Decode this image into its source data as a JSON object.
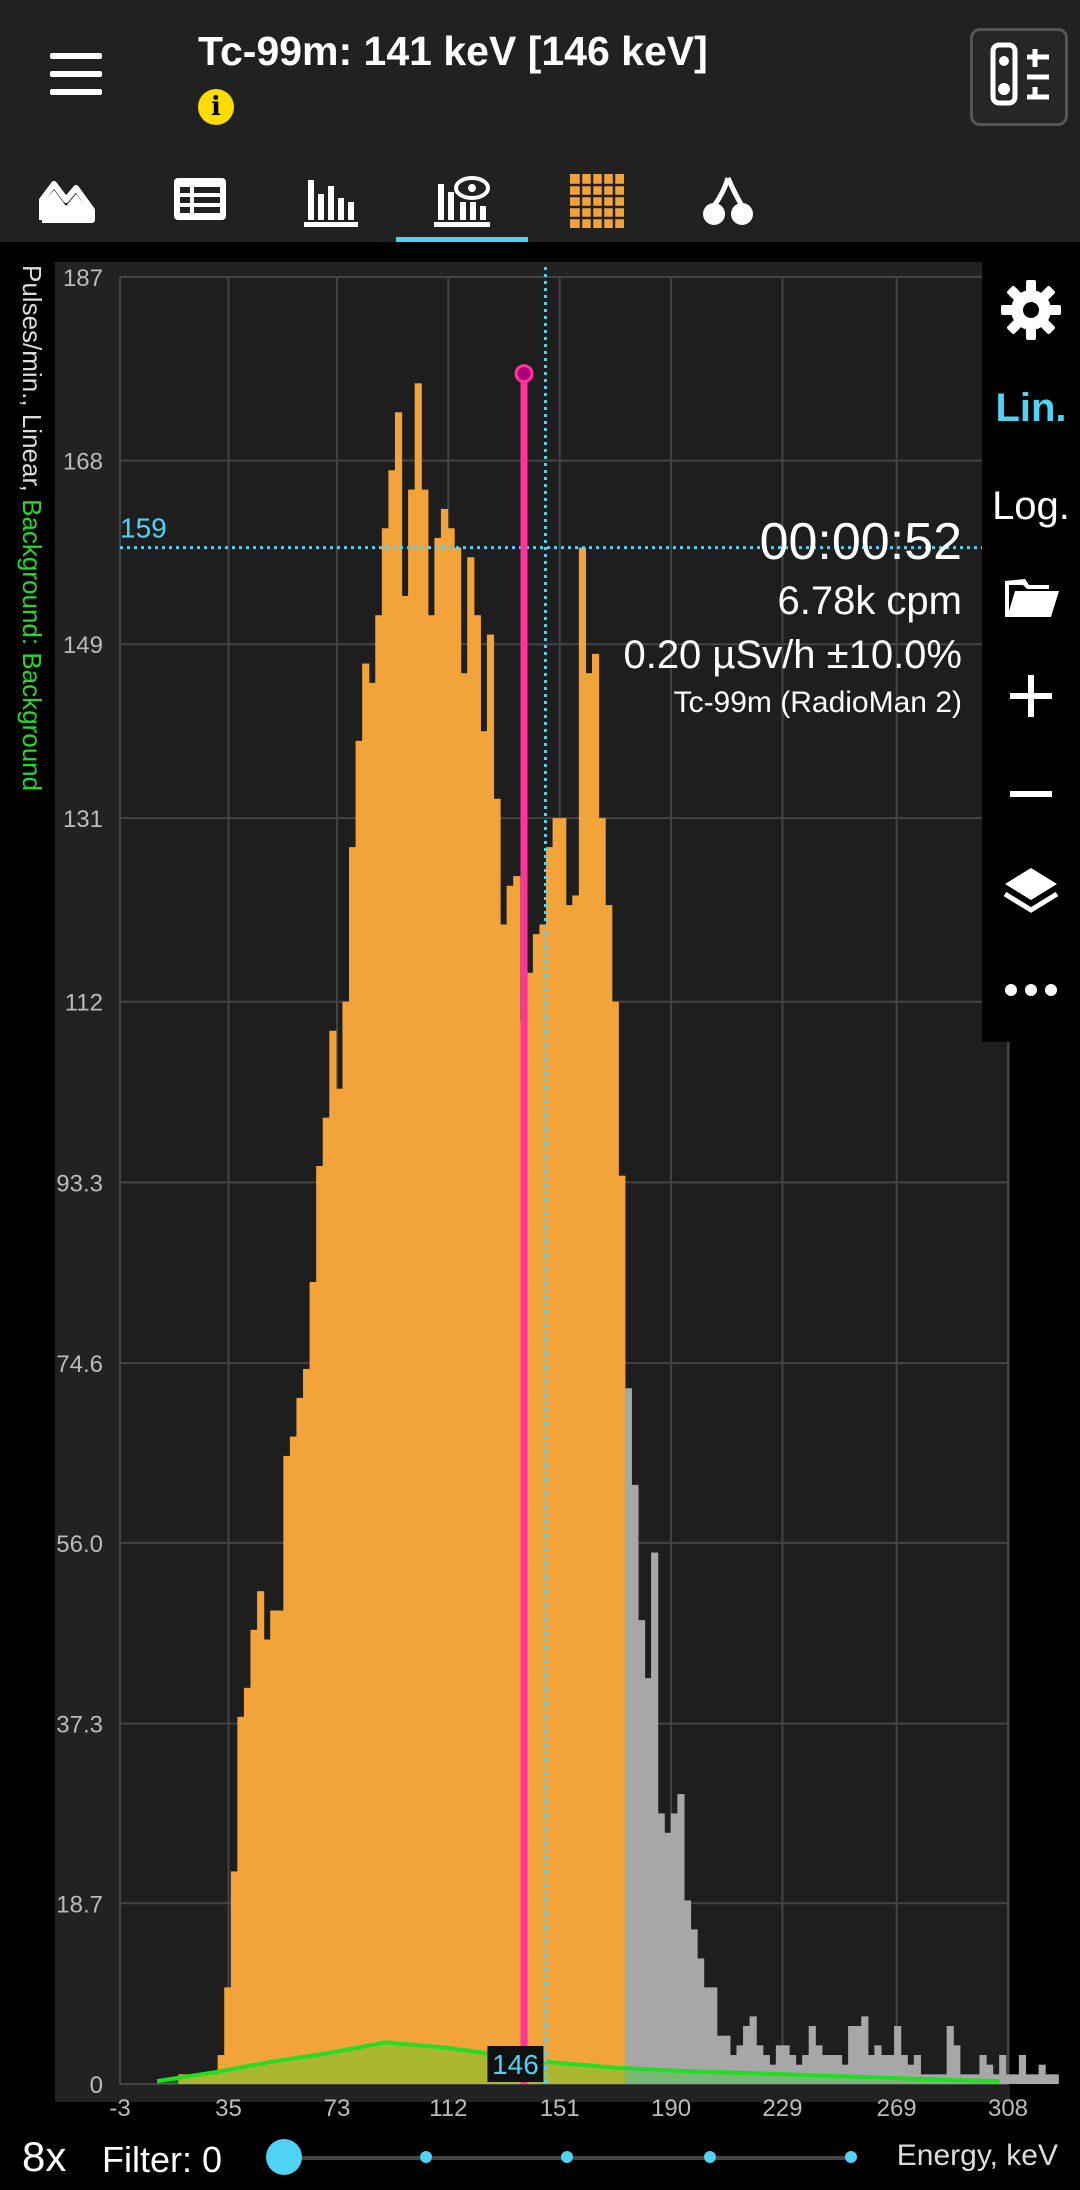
{
  "header": {
    "title": "Tc-99m: 141 keV [146 keV]",
    "info_icon": "i"
  },
  "tabs": [
    {
      "icon": "spectrum-area-icon"
    },
    {
      "icon": "table-icon"
    },
    {
      "icon": "histogram-icon"
    },
    {
      "icon": "spectrum-eye-icon",
      "active": true
    },
    {
      "icon": "grid-icon"
    },
    {
      "icon": "cherry-icon"
    }
  ],
  "stats": {
    "timer": "00:00:52",
    "cpm": "6.78k cpm",
    "dose": "0.20 µSv/h ±10.0%",
    "source": "Tc-99m (RadioMan 2)"
  },
  "axis_label": {
    "main": "Pulses/min., Linear, ",
    "background": "Background: Background"
  },
  "side_toolbar": {
    "lin": "Lin.",
    "log": "Log."
  },
  "cursor": {
    "h_value": "159",
    "v_value": "146"
  },
  "bottom": {
    "zoom": "8x",
    "filter": "Filter: 0",
    "energy": "Energy, keV"
  },
  "colors": {
    "bars": "#f2a33a",
    "bars_out": "#a7a7a7",
    "background_line": "#22dd22",
    "accent": "#4fd3f5",
    "marker": "#ff3399"
  },
  "chart_data": {
    "type": "bar",
    "xlabel": "Energy, keV",
    "ylabel": "Pulses/min., Linear, Background: Background",
    "x_ticks": [
      -3,
      35,
      73,
      112,
      151,
      190,
      229,
      269,
      308
    ],
    "y_ticks": [
      "0",
      "18.7",
      "37.3",
      "56.0",
      "74.6",
      "93.3",
      "112",
      "131",
      "149",
      "168",
      "187"
    ],
    "xlim": [
      -3,
      308
    ],
    "ylim": [
      0,
      187
    ],
    "bin_width": 2.3,
    "x_start": 17.4,
    "values": [
      1,
      1,
      1,
      1,
      1,
      1,
      3,
      10,
      22,
      38,
      41,
      47,
      51,
      46,
      49,
      49,
      65,
      67,
      71,
      74,
      83,
      95,
      100,
      109,
      103,
      112,
      128,
      139,
      147,
      145,
      152,
      161,
      167,
      173,
      154,
      165,
      176,
      165,
      152,
      160,
      163,
      161,
      159,
      146,
      158,
      152,
      140,
      150,
      133,
      120,
      124,
      125,
      110,
      115,
      119,
      120,
      128,
      131,
      131,
      122,
      123,
      159,
      146,
      148,
      131,
      122,
      112,
      94,
      72,
      62,
      48,
      42,
      55,
      28,
      26,
      28,
      30,
      19,
      16,
      13,
      10,
      10,
      5,
      5,
      3,
      4,
      6,
      7,
      4,
      3,
      2,
      4,
      4,
      3,
      2,
      3,
      6,
      4,
      3,
      3,
      3,
      2,
      6,
      6,
      7,
      3,
      4,
      3,
      3,
      6,
      3,
      2,
      3,
      1,
      1,
      1,
      1,
      6,
      4,
      1,
      1,
      1,
      3,
      2,
      1,
      3,
      1,
      1,
      3,
      1,
      1,
      2,
      1,
      1
    ],
    "cutoff_x": 172.0,
    "background_series": {
      "name": "Background",
      "x": [
        10,
        30,
        50,
        70,
        90,
        110,
        130,
        150,
        170,
        190,
        210,
        230,
        250,
        270,
        290,
        305
      ],
      "values": [
        0.3,
        1.2,
        2.3,
        3.2,
        4.3,
        3.8,
        3.0,
        2.2,
        1.7,
        1.4,
        1.2,
        1.0,
        0.8,
        0.6,
        0.4,
        0.3
      ]
    },
    "cursor_x": 146,
    "cursor_y": 159,
    "marker_x": 138.5,
    "marker_y": 177
  }
}
